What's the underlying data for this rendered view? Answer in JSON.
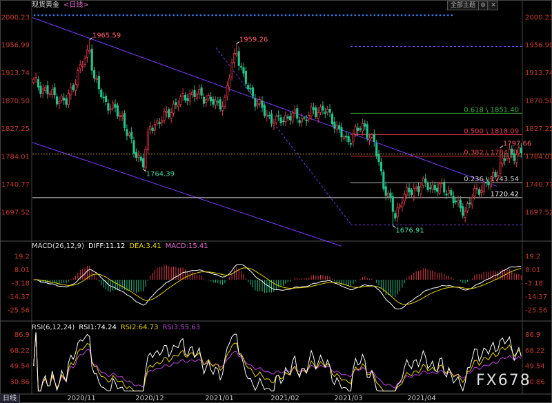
{
  "header": {
    "title": "现货黄金",
    "period": "<日线>",
    "theme_button": "全部主题",
    "settings_icon": "gear-icon",
    "close_icon": "close-icon",
    "period_tab": "日线",
    "watermark": "FX678"
  },
  "macd_legend": {
    "name": "MACD(26,12,9)",
    "diff": "DIFF:11.12",
    "dea": "DEA:3.41",
    "macd": "MACD:15.41"
  },
  "rsi_legend": {
    "name": "RSI(6,12,24)",
    "rsi1": "RSI1:74.24",
    "rsi2": "RSI2:64.73",
    "rsi3": "RSI3:55.63"
  },
  "colors": {
    "up": "#e03a4a",
    "down": "#22c38a",
    "channel": "#7a3cff",
    "fib_green": "#3cb043",
    "fib_red": "#e03a4a",
    "diff": "#ffffff",
    "dea": "#e6d200",
    "rsi3": "#c040e0"
  },
  "chart_data": [
    {
      "type": "candlestick",
      "symbol": "现货黄金",
      "x_ticks": [
        "2020/11",
        "2020/12",
        "2021/01",
        "2021/02",
        "2021/03",
        "2021/04"
      ],
      "y_ticks": [
        2000.23,
        1956.99,
        1913.74,
        1870.5,
        1827.25,
        1784.01,
        1740.77,
        1697.52
      ],
      "ylim": [
        1655,
        2008
      ],
      "annotations": [
        {
          "label": "1965.59",
          "bar": 24,
          "price": 1965.59,
          "kind": "high"
        },
        {
          "label": "1959.26",
          "bar": 87,
          "price": 1959.26,
          "kind": "high"
        },
        {
          "label": "1764.39",
          "bar": 47,
          "price": 1764.39,
          "kind": "low"
        },
        {
          "label": "1676.91",
          "bar": 154,
          "price": 1676.91,
          "kind": "low"
        },
        {
          "label": "1797.66",
          "bar": 200,
          "price": 1797.66,
          "kind": "high"
        }
      ],
      "fib_levels": [
        {
          "label": "0.618 \\ 1851.40",
          "price": 1851.4,
          "color": "green"
        },
        {
          "label": "0.500 \\ 1818.09",
          "price": 1818.09,
          "color": "red"
        },
        {
          "label": "0.382 \\ 1784.77",
          "price": 1784.77,
          "color": "red"
        },
        {
          "label": "0.236 \\ 1743.54",
          "price": 1743.54,
          "color": "white"
        }
      ],
      "price_lines": [
        {
          "label": "1720.42",
          "price": 1720.42
        }
      ],
      "current_price": 1788.0,
      "grid": false
    },
    {
      "type": "macd",
      "params": "26,12,9",
      "diff": 11.12,
      "dea": 3.41,
      "macd": 15.41,
      "y_ticks": [
        19.2,
        8.01,
        -3.18,
        -14.37,
        -25.56
      ],
      "ylim": [
        -32,
        24
      ]
    },
    {
      "type": "rsi",
      "params": "6,12,24",
      "rsi1": 74.24,
      "rsi2": 64.73,
      "rsi3": 55.63,
      "y_ticks": [
        86.9,
        68.22,
        49.54,
        30.86
      ],
      "ylim": [
        18,
        92
      ]
    }
  ]
}
